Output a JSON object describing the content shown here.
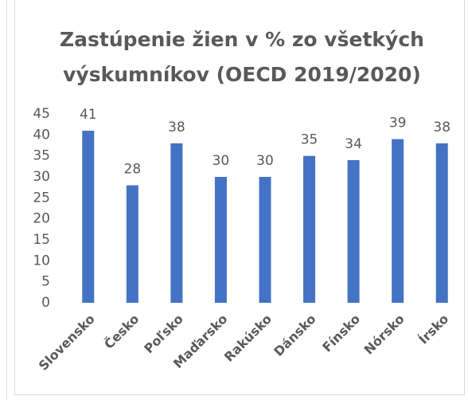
{
  "chart_data": {
    "type": "bar",
    "title": "Zastúpenie žien v % zo všetkých výskumníkov (OECD 2019/2020)",
    "categories": [
      "Slovensko",
      "Česko",
      "Poľsko",
      "Maďarsko",
      "Rakúsko",
      "Dánsko",
      "Fínsko",
      "Nórsko",
      "Írsko"
    ],
    "values": [
      41,
      28,
      38,
      30,
      30,
      35,
      34,
      39,
      38
    ],
    "color": "#4472c4",
    "ylim": [
      0,
      45
    ],
    "yticks": [
      0,
      5,
      10,
      15,
      20,
      25,
      30,
      35,
      40,
      45
    ],
    "grid": false
  }
}
